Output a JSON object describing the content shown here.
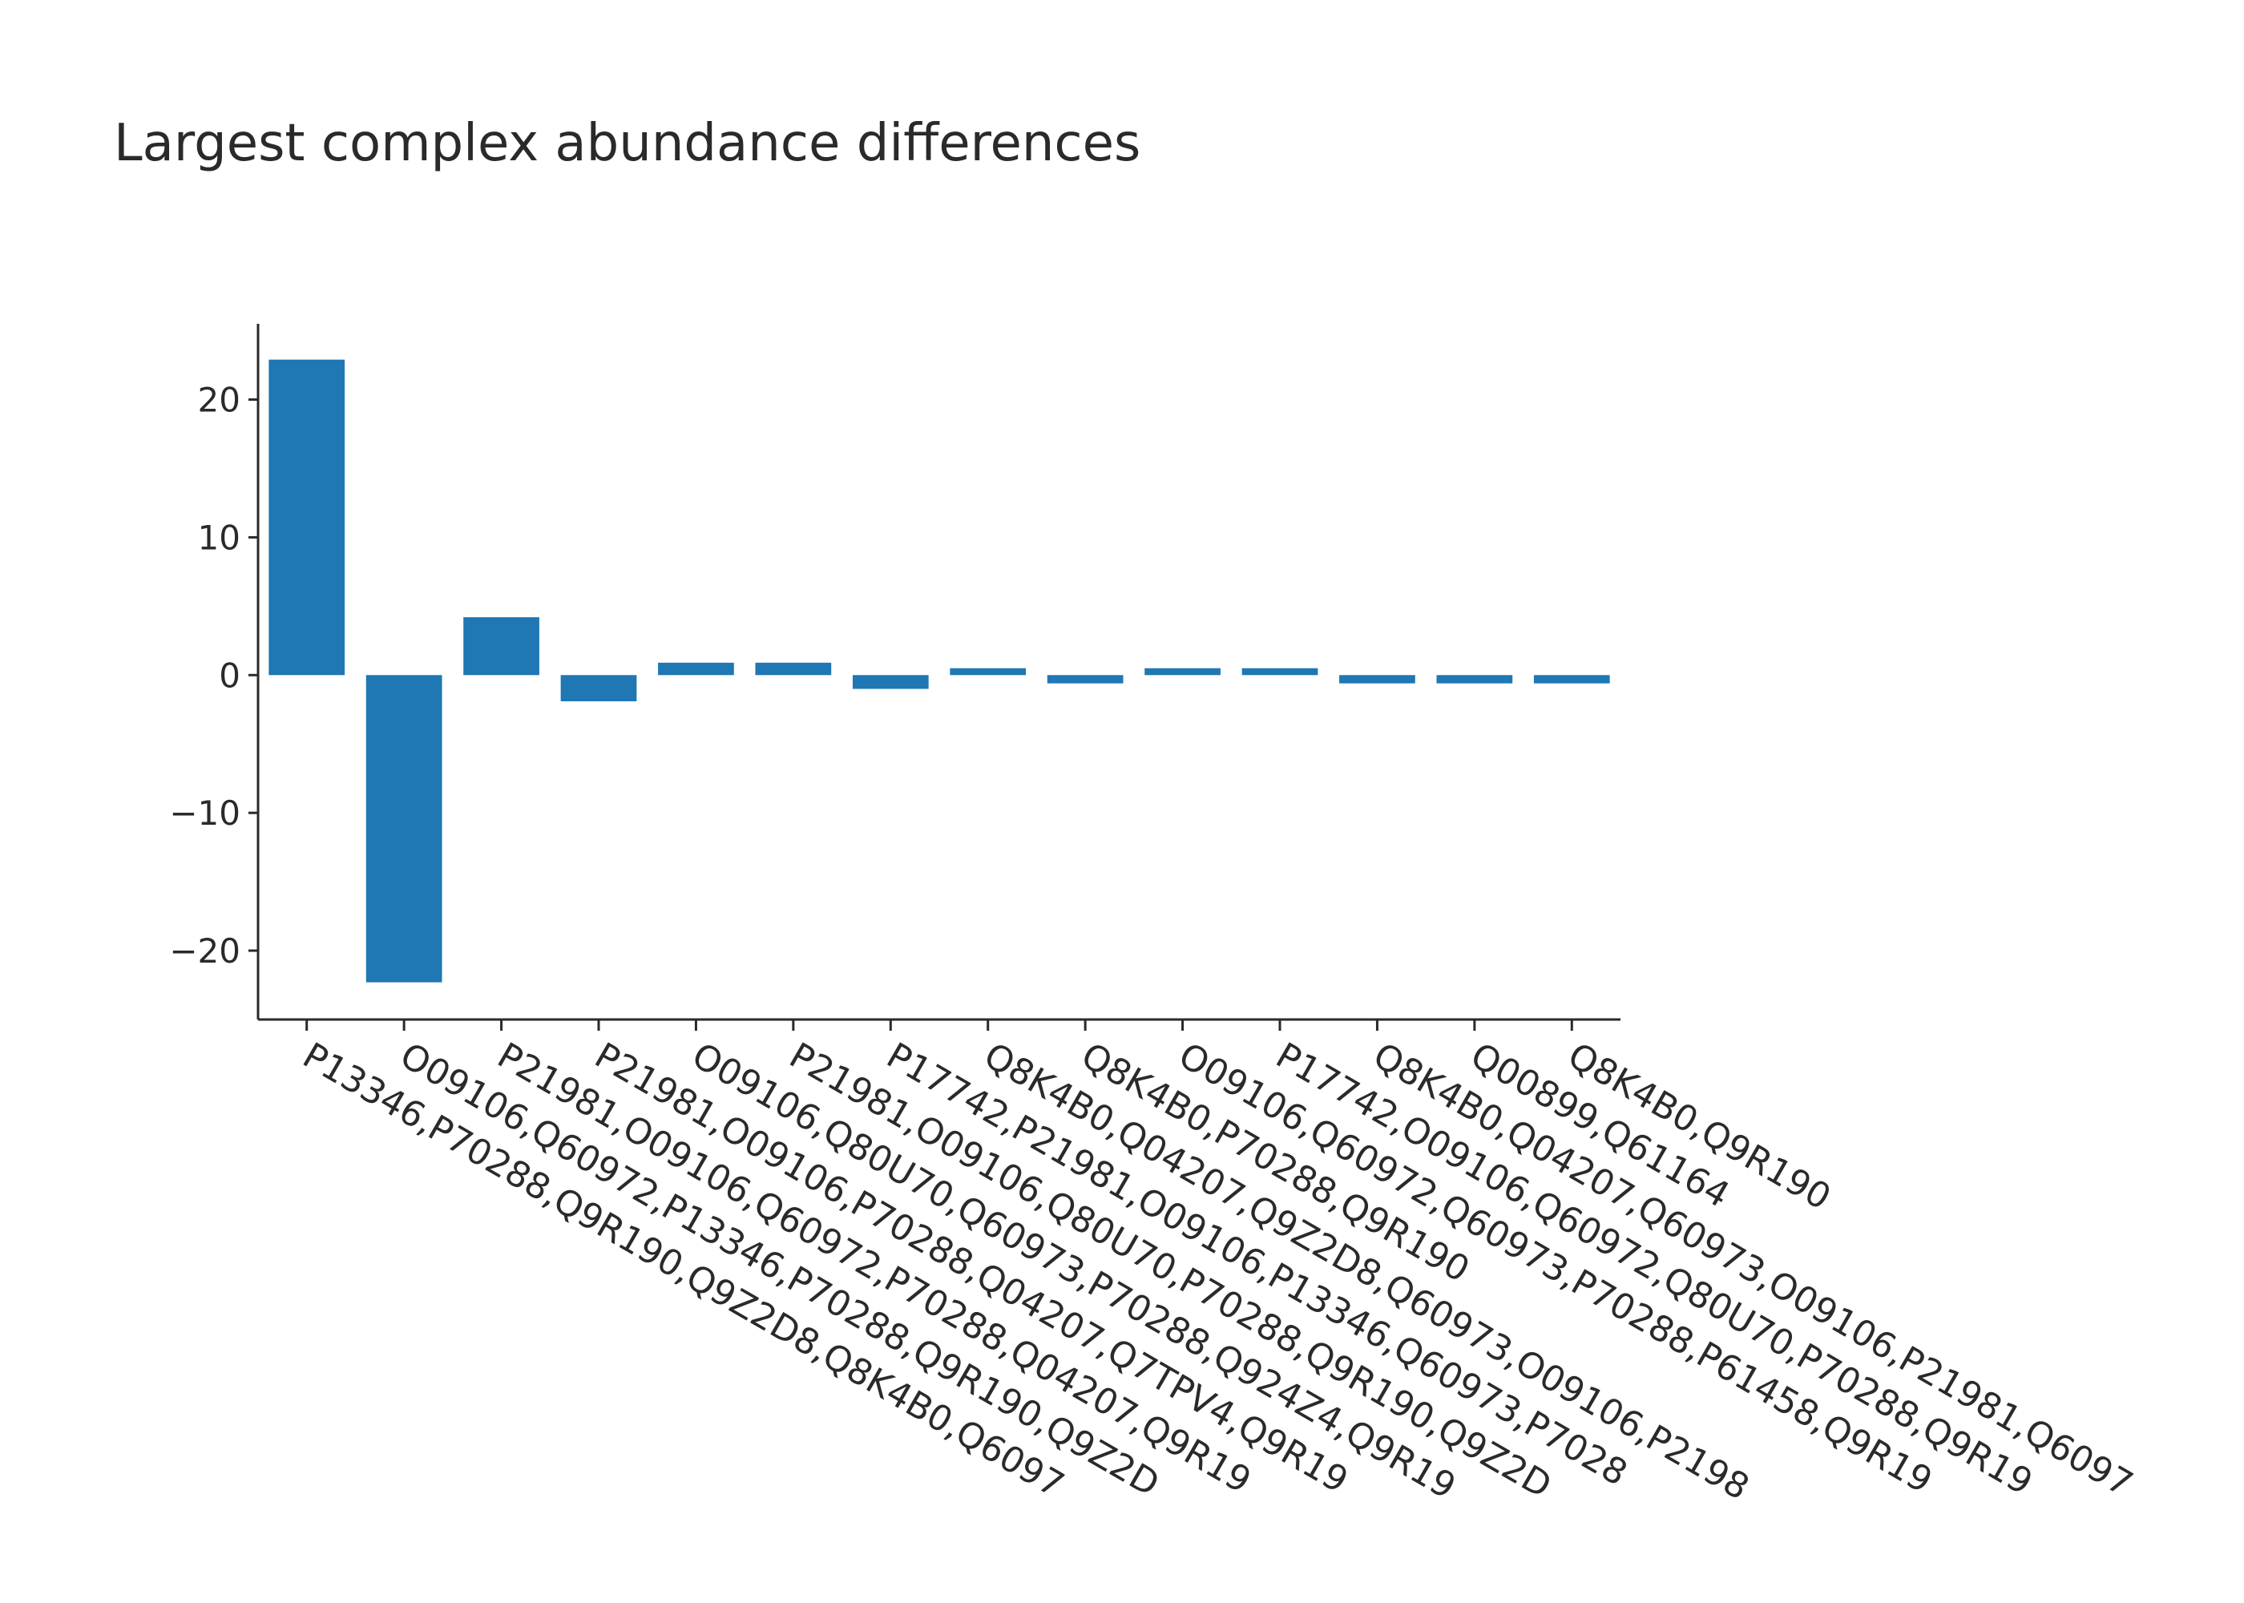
{
  "chart_data": {
    "type": "bar",
    "title": "Largest complex abundance differences",
    "xlabel": "",
    "ylabel": "",
    "ylim": [
      -25,
      25.5
    ],
    "yticks": [
      20,
      10,
      0,
      -10,
      -20
    ],
    "ytick_labels": [
      "20",
      "10",
      "0",
      "−10",
      "−20"
    ],
    "grid": false,
    "legend": false,
    "bar_color": "#1f77b4",
    "categories": [
      "P13346,P70288,Q9R190,Q9Z2D8,Q8K4B0,Q6097",
      "O09106,Q60972,P13346,P70288,Q9R190,Q9Z2D",
      "P21981,O09106,Q60972,P70288,Q04207,Q9R19",
      "P21981,O09106,P70288,Q04207,Q7TPV4,Q9R19",
      "O09106,Q80U70,Q60973,P70288,Q924Z4,Q9R19",
      "P21981,O09106,Q80U70,P70288,Q9R190,Q9Z2D",
      "P17742,P21981,O09106,P13346,Q60973,P7028",
      "Q8K4B0,Q04207,Q9Z2D8,Q60973,O09106,P2198",
      "Q8K4B0,P70288,Q9R190",
      "O09106,Q60972,Q60973,P70288,P61458,Q9R19",
      "P17742,O09106,Q60972,Q80U70,P70288,Q9R19",
      "Q8K4B0,Q04207,Q60973,O09106,P21981,Q6097",
      "Q00899,Q61164",
      "Q8K4B0,Q9R190"
    ],
    "values": [
      22.9,
      -22.3,
      4.2,
      -1.9,
      0.9,
      0.9,
      -1.0,
      0.5,
      -0.6,
      0.5,
      0.5,
      -0.6,
      -0.6,
      -0.6
    ]
  }
}
